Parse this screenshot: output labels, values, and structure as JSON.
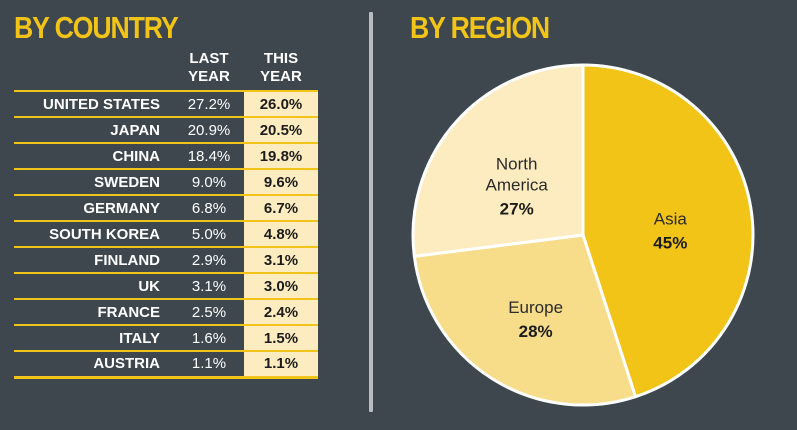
{
  "headings": {
    "country": "BY COUNTRY",
    "region": "BY REGION"
  },
  "table": {
    "col_last": [
      "LAST",
      "YEAR"
    ],
    "col_this": [
      "THIS",
      "YEAR"
    ],
    "rows": [
      {
        "country": "UNITED STATES",
        "last": "27.2%",
        "this": "26.0%"
      },
      {
        "country": "JAPAN",
        "last": "20.9%",
        "this": "20.5%"
      },
      {
        "country": "CHINA",
        "last": "18.4%",
        "this": "19.8%"
      },
      {
        "country": "SWEDEN",
        "last": "9.0%",
        "this": "9.6%"
      },
      {
        "country": "GERMANY",
        "last": "6.8%",
        "this": "6.7%"
      },
      {
        "country": "SOUTH KOREA",
        "last": "5.0%",
        "this": "4.8%"
      },
      {
        "country": "FINLAND",
        "last": "2.9%",
        "this": "3.1%"
      },
      {
        "country": "UK",
        "last": "3.1%",
        "this": "3.0%"
      },
      {
        "country": "FRANCE",
        "last": "2.5%",
        "this": "2.4%"
      },
      {
        "country": "ITALY",
        "last": "1.6%",
        "this": "1.5%"
      },
      {
        "country": "AUSTRIA",
        "last": "1.1%",
        "this": "1.1%"
      }
    ]
  },
  "chart_data": [
    {
      "type": "table",
      "title": "BY COUNTRY",
      "columns": [
        "",
        "LAST YEAR",
        "THIS YEAR"
      ],
      "rows": [
        [
          "UNITED STATES",
          27.2,
          26.0
        ],
        [
          "JAPAN",
          20.9,
          20.5
        ],
        [
          "CHINA",
          18.4,
          19.8
        ],
        [
          "SWEDEN",
          9.0,
          9.6
        ],
        [
          "GERMANY",
          6.8,
          6.7
        ],
        [
          "SOUTH KOREA",
          5.0,
          4.8
        ],
        [
          "FINLAND",
          2.9,
          3.1
        ],
        [
          "UK",
          3.1,
          3.0
        ],
        [
          "FRANCE",
          2.5,
          2.4
        ],
        [
          "ITALY",
          1.6,
          1.5
        ],
        [
          "AUSTRIA",
          1.1,
          1.1
        ]
      ]
    },
    {
      "type": "pie",
      "title": "BY REGION",
      "slices": [
        {
          "label": [
            "Asia"
          ],
          "value": 45,
          "display": "45%",
          "color": "#f2c418"
        },
        {
          "label": [
            "Europe"
          ],
          "value": 28,
          "display": "28%",
          "color": "#f7dd8a"
        },
        {
          "label": [
            "North",
            "America"
          ],
          "value": 27,
          "display": "27%",
          "color": "#fcecc0"
        }
      ]
    }
  ],
  "colors": {
    "background": "#3d474d",
    "accent": "#f2c418",
    "highlight_column": "#fcecc0",
    "divider": "#b7bcbf"
  }
}
